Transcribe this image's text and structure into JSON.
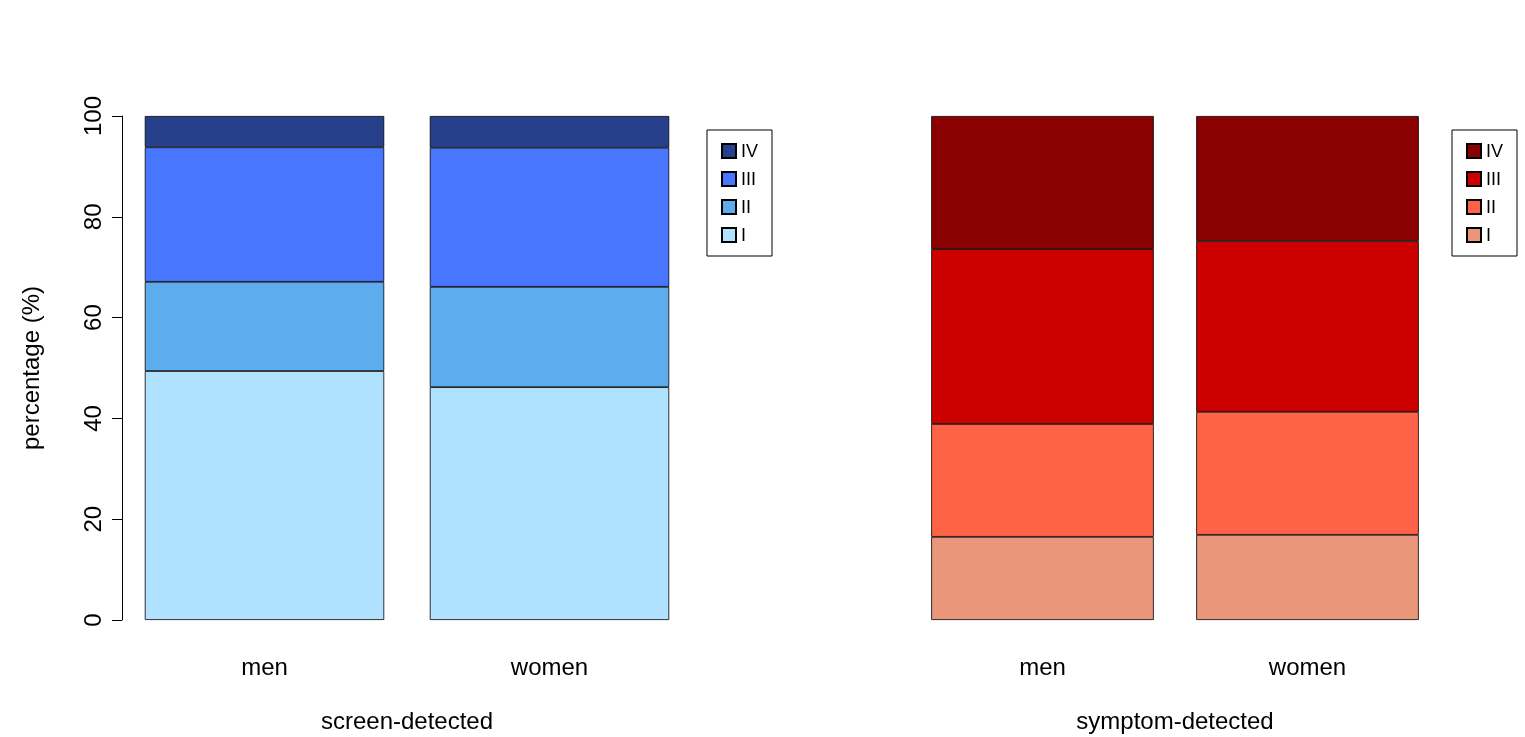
{
  "chart_data": [
    {
      "type": "bar",
      "stacked": true,
      "ylabel": "percentage (%)",
      "xlabel": "screen-detected",
      "categories": [
        "men",
        "women"
      ],
      "ylim": [
        0,
        100
      ],
      "yticks": [
        0,
        20,
        40,
        60,
        80,
        100
      ],
      "legend": "top right",
      "series": [
        {
          "name": "I",
          "color": "#b0e2ff",
          "values": [
            49.4,
            46.2
          ]
        },
        {
          "name": "II",
          "color": "#5cacee",
          "values": [
            17.7,
            19.9
          ]
        },
        {
          "name": "III",
          "color": "#4876ff",
          "values": [
            26.7,
            27.6
          ]
        },
        {
          "name": "IV",
          "color": "#27408b",
          "values": [
            6.2,
            6.3
          ]
        }
      ]
    },
    {
      "type": "bar",
      "stacked": true,
      "xlabel": "symptom-detected",
      "categories": [
        "men",
        "women"
      ],
      "ylim": [
        0,
        100
      ],
      "yticks": [
        0,
        20,
        40,
        60,
        80,
        100
      ],
      "tick_labels": "x",
      "legend": "top right",
      "series": [
        {
          "name": "I",
          "color": "#e9967a",
          "values": [
            16.5,
            16.9
          ]
        },
        {
          "name": "II",
          "color": "#ff6347",
          "values": [
            22.4,
            24.4
          ]
        },
        {
          "name": "III",
          "color": "#cd0000",
          "values": [
            34.7,
            33.9
          ]
        },
        {
          "name": "IV",
          "color": "#8b0000",
          "values": [
            26.4,
            24.8
          ]
        }
      ]
    }
  ]
}
